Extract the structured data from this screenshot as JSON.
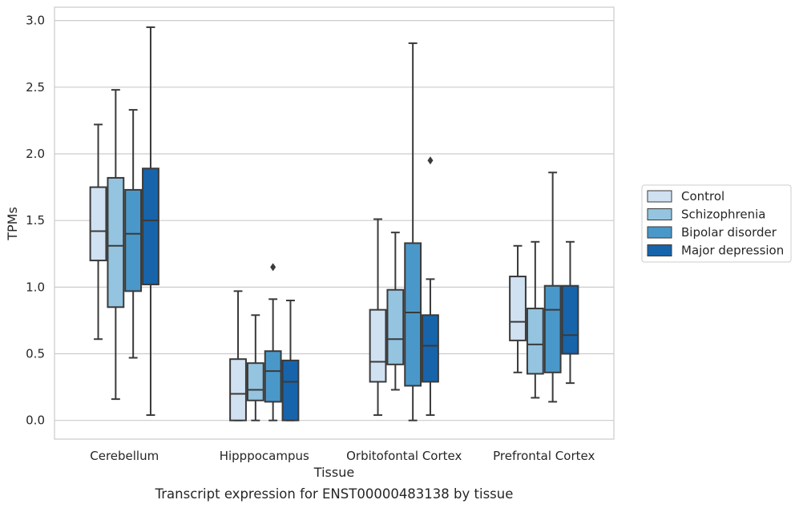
{
  "caption": "Transcript expression for ENST00000483138 by tissue",
  "chart_data": {
    "type": "boxplot",
    "xlabel": "Tissue",
    "ylabel": "TPMs",
    "ylim": [
      -0.14,
      3.1
    ],
    "yticks": [
      "0.0",
      "0.5",
      "1.0",
      "1.5",
      "2.0",
      "2.5",
      "3.0"
    ],
    "grid": "horizontal",
    "legend_position": "right",
    "categories": [
      "Cerebellum",
      "Hipppocampus",
      "Orbitofontal Cortex",
      "Prefrontal Cortex"
    ],
    "series": [
      {
        "name": "Control",
        "color": "#d0e1f2",
        "boxes": [
          {
            "whislo": 0.61,
            "q1": 1.2,
            "med": 1.42,
            "q3": 1.75,
            "whishi": 2.22,
            "fliers": []
          },
          {
            "whislo": 0.0,
            "q1": 0.0,
            "med": 0.2,
            "q3": 0.46,
            "whishi": 0.97,
            "fliers": []
          },
          {
            "whislo": 0.04,
            "q1": 0.29,
            "med": 0.44,
            "q3": 0.83,
            "whishi": 1.51,
            "fliers": []
          },
          {
            "whislo": 0.36,
            "q1": 0.6,
            "med": 0.74,
            "q3": 1.08,
            "whishi": 1.31,
            "fliers": []
          }
        ]
      },
      {
        "name": "Schizophrenia",
        "color": "#94c4df",
        "boxes": [
          {
            "whislo": 0.16,
            "q1": 0.85,
            "med": 1.31,
            "q3": 1.82,
            "whishi": 2.48,
            "fliers": []
          },
          {
            "whislo": 0.0,
            "q1": 0.15,
            "med": 0.23,
            "q3": 0.43,
            "whishi": 0.79,
            "fliers": []
          },
          {
            "whislo": 0.23,
            "q1": 0.42,
            "med": 0.61,
            "q3": 0.98,
            "whishi": 1.41,
            "fliers": []
          },
          {
            "whislo": 0.17,
            "q1": 0.35,
            "med": 0.57,
            "q3": 0.84,
            "whishi": 1.34,
            "fliers": []
          }
        ]
      },
      {
        "name": "Bipolar disorder",
        "color": "#4a98c9",
        "boxes": [
          {
            "whislo": 0.47,
            "q1": 0.97,
            "med": 1.4,
            "q3": 1.73,
            "whishi": 2.33,
            "fliers": []
          },
          {
            "whislo": 0.0,
            "q1": 0.14,
            "med": 0.37,
            "q3": 0.52,
            "whishi": 0.91,
            "fliers": [
              1.15
            ]
          },
          {
            "whislo": 0.0,
            "q1": 0.26,
            "med": 0.81,
            "q3": 1.33,
            "whishi": 2.83,
            "fliers": []
          },
          {
            "whislo": 0.14,
            "q1": 0.36,
            "med": 0.83,
            "q3": 1.01,
            "whishi": 1.86,
            "fliers": []
          }
        ]
      },
      {
        "name": "Major depression",
        "color": "#1764ab",
        "boxes": [
          {
            "whislo": 0.04,
            "q1": 1.02,
            "med": 1.5,
            "q3": 1.89,
            "whishi": 2.95,
            "fliers": []
          },
          {
            "whislo": 0.0,
            "q1": 0.0,
            "med": 0.29,
            "q3": 0.45,
            "whishi": 0.9,
            "fliers": []
          },
          {
            "whislo": 0.04,
            "q1": 0.29,
            "med": 0.56,
            "q3": 0.79,
            "whishi": 1.06,
            "fliers": [
              1.95
            ]
          },
          {
            "whislo": 0.28,
            "q1": 0.5,
            "med": 0.64,
            "q3": 1.01,
            "whishi": 1.34,
            "fliers": []
          }
        ]
      }
    ]
  }
}
